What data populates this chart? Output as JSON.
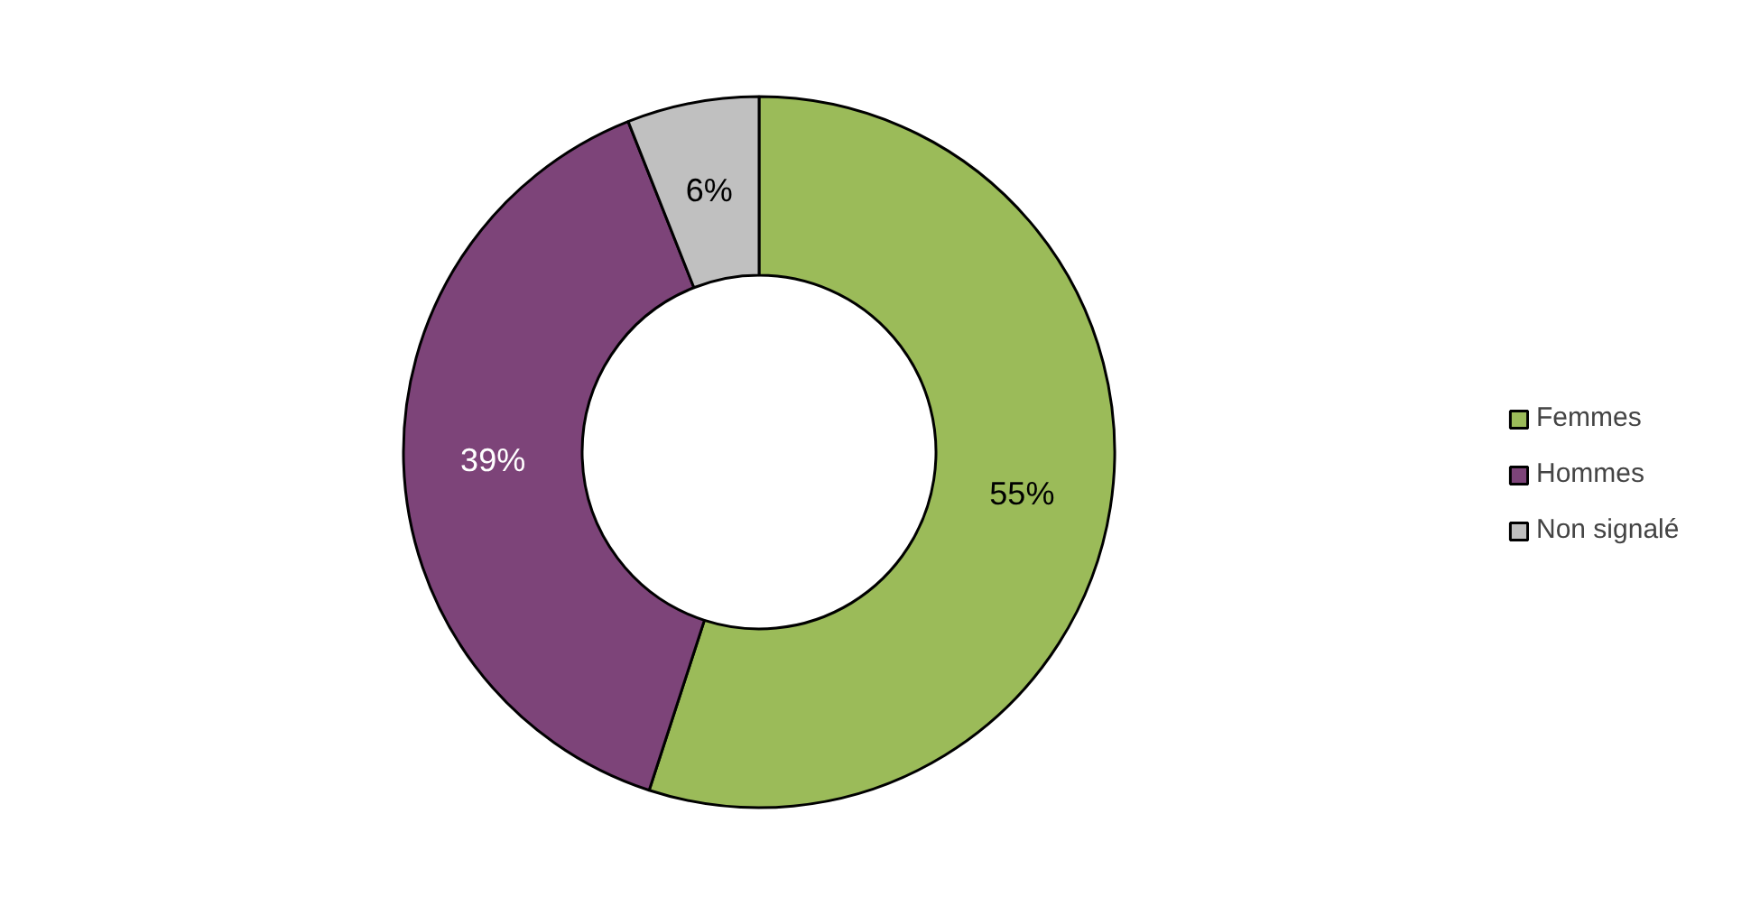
{
  "chart_data": {
    "type": "donut",
    "categories": [
      "Femmes",
      "Hommes",
      "Non signalé"
    ],
    "values": [
      55,
      39,
      6
    ],
    "colors": [
      "#9bbb59",
      "#7d4479",
      "#c0c0c0"
    ],
    "value_labels": [
      "55%",
      "39%",
      "6%"
    ],
    "legend": "right"
  }
}
